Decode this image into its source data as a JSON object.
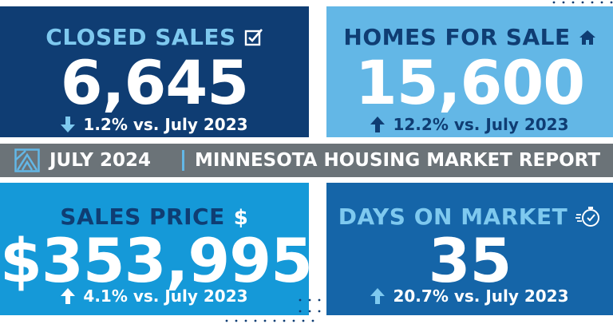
{
  "closed_sales": {
    "title": "CLOSED SALES",
    "value": "6,645",
    "change": "1.2% vs. July 2023",
    "direction": "down",
    "icon": "checkbox-icon"
  },
  "homes_for_sale": {
    "title": "HOMES FOR SALE",
    "value": "15,600",
    "change": "12.2% vs. July 2023",
    "direction": "up",
    "icon": "house-icon"
  },
  "banner": {
    "date": "JULY 2024",
    "title": "MINNESOTA HOUSING MARKET REPORT",
    "icon": "logo-icon"
  },
  "sales_price": {
    "title": "SALES PRICE",
    "value": "$353,995",
    "change": "4.1% vs. July 2023",
    "direction": "up",
    "icon": "dollar-icon"
  },
  "days_on_market": {
    "title": "DAYS ON MARKET",
    "value": "35",
    "change": "20.7% vs. July 2023",
    "direction": "up",
    "icon": "stopwatch-icon"
  },
  "colors": {
    "navy": "#0f3d73",
    "light_blue": "#63b7e6",
    "bright_blue": "#1599d8",
    "mid_blue": "#1565a8",
    "banner_gray": "#6b7378"
  }
}
